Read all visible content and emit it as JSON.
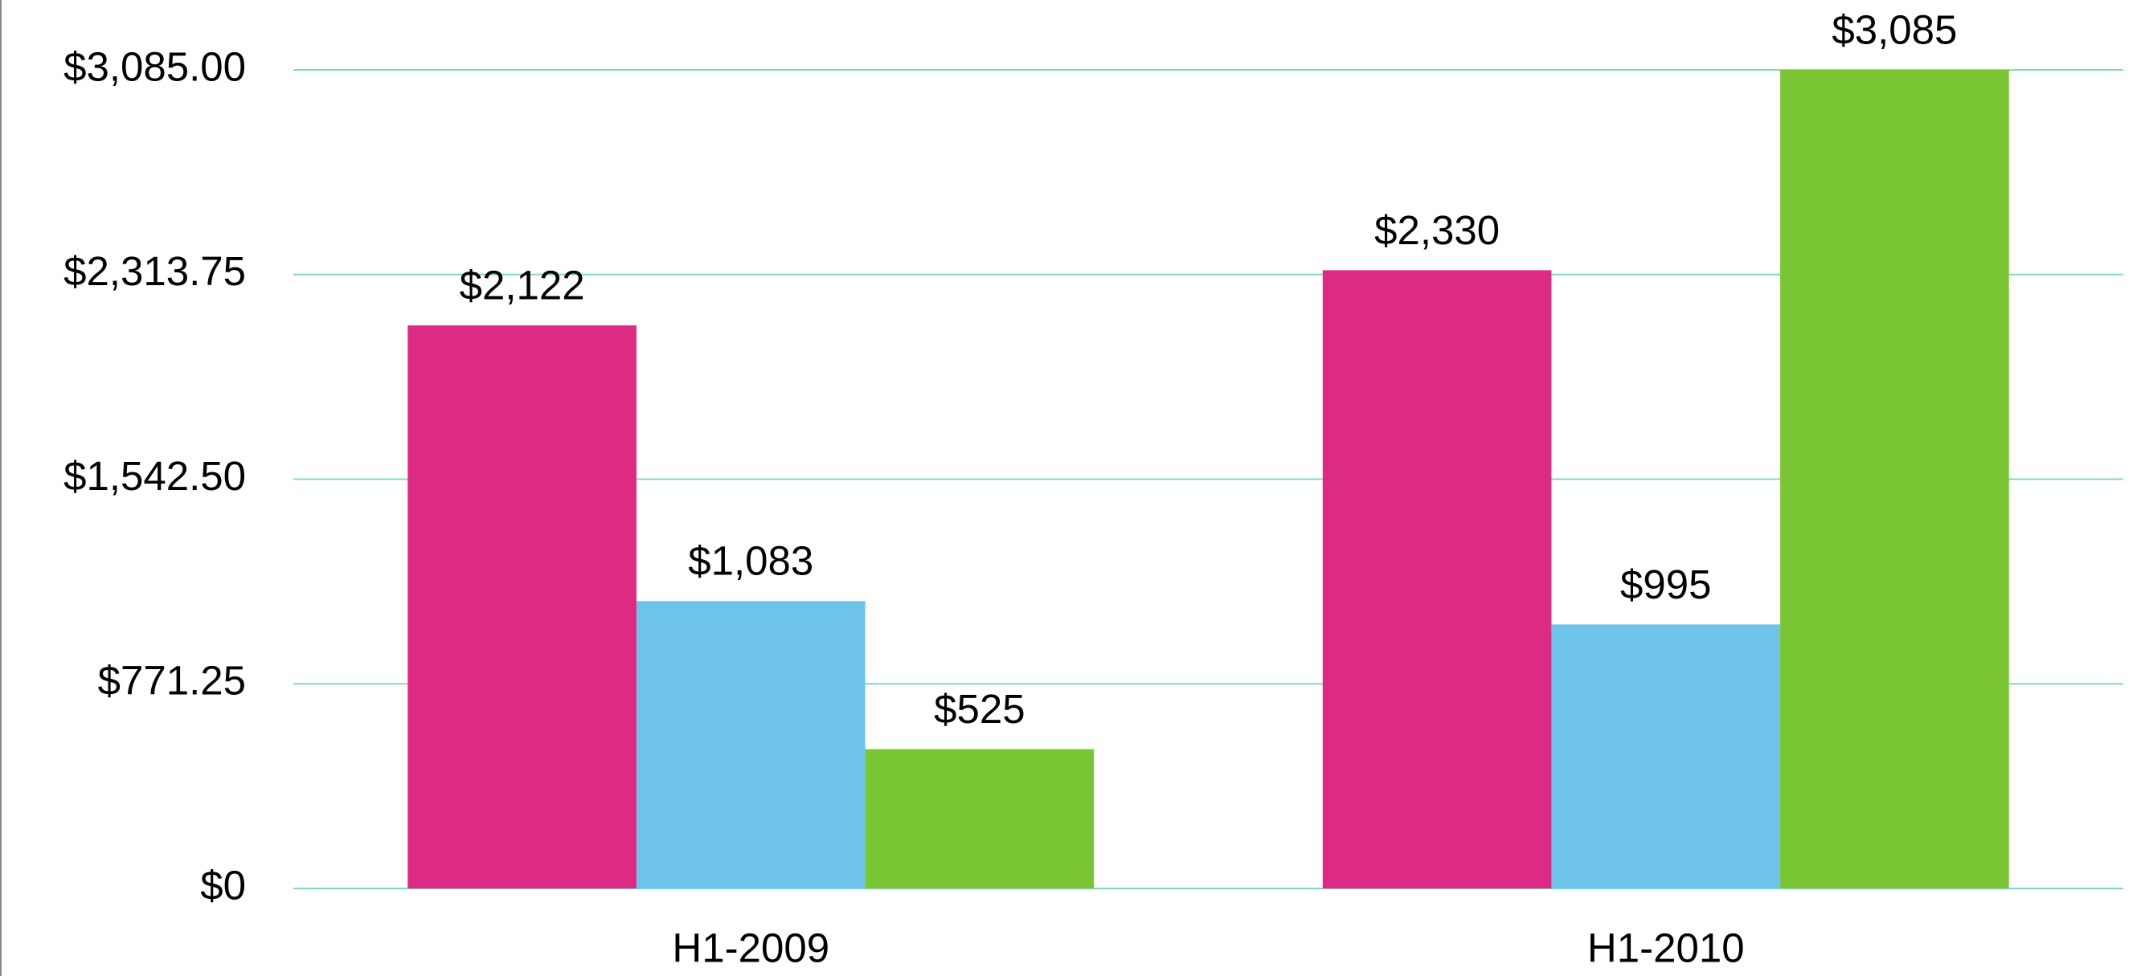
{
  "chart_data": {
    "type": "bar",
    "categories": [
      "H1-2009",
      "H1-2010"
    ],
    "series": [
      {
        "color": "#dd2a82",
        "values": [
          2122,
          2330
        ],
        "value_labels": [
          "$2,122",
          "$2,330"
        ]
      },
      {
        "color": "#6ec3ea",
        "values": [
          1083,
          995
        ],
        "value_labels": [
          "$1,083",
          "$995"
        ]
      },
      {
        "color": "#7ac534",
        "values": [
          525,
          3085
        ],
        "value_labels": [
          "$525",
          "$3,085"
        ]
      }
    ],
    "ylim": [
      0,
      3085
    ],
    "yticks": [
      {
        "value": 0,
        "label": "$0"
      },
      {
        "value": 771.25,
        "label": "$771.25"
      },
      {
        "value": 1542.5,
        "label": "$1,542.50"
      },
      {
        "value": 2313.75,
        "label": "$2,313.75"
      },
      {
        "value": 3085,
        "label": "$3,085.00"
      }
    ],
    "grid": true,
    "grid_color": "#80d8c4"
  }
}
